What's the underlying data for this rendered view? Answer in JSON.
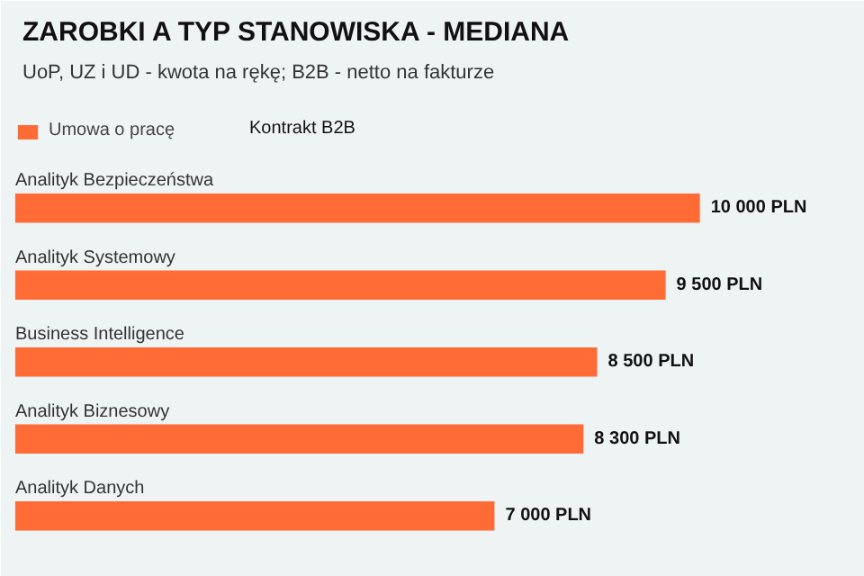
{
  "chart_data": {
    "type": "bar",
    "orientation": "horizontal",
    "title": "ZAROBKI A TYP STANOWISKA - MEDIANA",
    "subtitle": "UoP, UZ i UD - kwota na rękę; B2B - netto na fakturze",
    "categories": [
      "Analityk Bezpieczeństwa",
      "Analityk Systemowy",
      "Business Intelligence",
      "Analityk Biznesowy",
      "Analityk Danych"
    ],
    "series": [
      {
        "name": "Umowa o pracę",
        "color": "#ff6b35",
        "values": [
          10000,
          9500,
          8500,
          8300,
          7000
        ],
        "value_labels": [
          "10 000 PLN",
          "9 500 PLN",
          "8 500 PLN",
          "8 300 PLN",
          "7 000 PLN"
        ]
      }
    ],
    "xlim": [
      0,
      12200
    ],
    "tick_labels": false,
    "grid": false,
    "legend": "top left",
    "annotations": [
      "Kontrakt B2B"
    ]
  }
}
